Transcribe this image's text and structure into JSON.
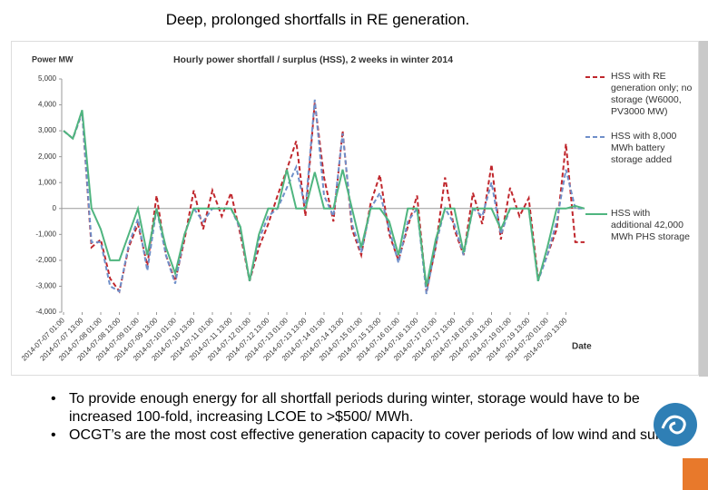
{
  "slide_title": "Deep, prolonged shortfalls in RE generation.",
  "bullets": [
    "To provide enough energy for all shortfall periods during winter, storage would have to be increased 100-fold, increasing LCOE to >$500/ MWh.",
    "OCGT’s are the most cost effective generation capacity to cover periods of low wind and sun."
  ],
  "chart_data": {
    "type": "line",
    "title": "Hourly power shortfall / surplus (HSS), 2 weeks in winter 2014",
    "y_label": "Power MW",
    "x_label": "Date",
    "legend": "right",
    "grid": false,
    "ylim": [
      -4000,
      5000
    ],
    "yticks": [
      {
        "value": 5000,
        "label": "5,000"
      },
      {
        "value": 4000,
        "label": "4,000"
      },
      {
        "value": 3000,
        "label": "3,000"
      },
      {
        "value": 2000,
        "label": "2,000"
      },
      {
        "value": 1000,
        "label": "1,000"
      },
      0,
      {
        "value": -1000,
        "label": "-1,000"
      },
      {
        "value": -2000,
        "label": "-2,000"
      },
      {
        "value": -3000,
        "label": "-3,000"
      },
      {
        "value": -4000,
        "label": "-4,000"
      }
    ],
    "xlim": [
      "2014-07-07 01:00",
      "2014-07-21 01:00"
    ],
    "xticks": [
      "2014-07-07 01:00",
      "2014-07-07 13:00",
      "2014-07-08 01:00",
      "2014-07-08 13:00",
      "2014-07-09 01:00",
      "2014-07-09 13:00",
      "2014-07-10 01:00",
      "2014-07-10 13:00",
      "2014-07-11 01:00",
      "2014-07-11 13:00",
      "2014-07-12 01:00",
      "2014-07-12 13:00",
      "2014-07-13 01:00",
      "2014-07-13 13:00",
      "2014-07-14 01:00",
      "2014-07-14 13:00",
      "2014-07-15 01:00",
      "2014-07-15 13:00",
      "2014-07-16 01:00",
      "2014-07-16 13:00",
      "2014-07-17 01:00",
      "2014-07-17 13:00",
      "2014-07-18 01:00",
      "2014-07-18 13:00",
      "2014-07-19 01:00",
      "2014-07-19 13:00",
      "2014-07-20 01:00",
      "2014-07-20 13:00"
    ],
    "x": [
      "2014-07-07 01:00",
      "2014-07-07 07:00",
      "2014-07-07 13:00",
      "2014-07-07 19:00",
      "2014-07-08 01:00",
      "2014-07-08 07:00",
      "2014-07-08 13:00",
      "2014-07-08 19:00",
      "2014-07-09 01:00",
      "2014-07-09 07:00",
      "2014-07-09 13:00",
      "2014-07-09 19:00",
      "2014-07-10 01:00",
      "2014-07-10 07:00",
      "2014-07-10 13:00",
      "2014-07-10 19:00",
      "2014-07-11 01:00",
      "2014-07-11 07:00",
      "2014-07-11 13:00",
      "2014-07-11 19:00",
      "2014-07-12 01:00",
      "2014-07-12 07:00",
      "2014-07-12 13:00",
      "2014-07-12 19:00",
      "2014-07-13 01:00",
      "2014-07-13 07:00",
      "2014-07-13 13:00",
      "2014-07-13 19:00",
      "2014-07-14 01:00",
      "2014-07-14 07:00",
      "2014-07-14 13:00",
      "2014-07-14 19:00",
      "2014-07-15 01:00",
      "2014-07-15 07:00",
      "2014-07-15 13:00",
      "2014-07-15 19:00",
      "2014-07-16 01:00",
      "2014-07-16 07:00",
      "2014-07-16 13:00",
      "2014-07-16 19:00",
      "2014-07-17 01:00",
      "2014-07-17 07:00",
      "2014-07-17 13:00",
      "2014-07-17 19:00",
      "2014-07-18 01:00",
      "2014-07-18 07:00",
      "2014-07-18 13:00",
      "2014-07-18 19:00",
      "2014-07-19 01:00",
      "2014-07-19 07:00",
      "2014-07-19 13:00",
      "2014-07-19 19:00",
      "2014-07-20 01:00",
      "2014-07-20 07:00",
      "2014-07-20 13:00",
      "2014-07-20 19:00",
      "2014-07-21 01:00"
    ],
    "series": [
      {
        "name": "HSS with RE generation only; no storage (W6000, PV3000 MW)",
        "color": "#c0272d",
        "dash": true,
        "values": [
          3000,
          2700,
          3700,
          -1500,
          -1200,
          -2700,
          -3200,
          -1500,
          -600,
          -2200,
          500,
          -1800,
          -2800,
          -1200,
          700,
          -800,
          700,
          -300,
          600,
          -1000,
          -2800,
          -1500,
          -600,
          500,
          1500,
          2600,
          -300,
          4100,
          1200,
          -500,
          3000,
          -800,
          -1800,
          200,
          1300,
          -1000,
          -2000,
          -700,
          500,
          -3200,
          -1500,
          1200,
          -800,
          -1800,
          600,
          -600,
          1700,
          -1200,
          800,
          -300,
          400,
          -2700,
          -1800,
          -800,
          2500,
          -1300,
          -1300
        ]
      },
      {
        "name": "HSS with 8,000 MWh battery storage added",
        "color": "#6f8fc9",
        "dash": true,
        "values": [
          3000,
          2700,
          3700,
          -1300,
          -1300,
          -3000,
          -3200,
          -1400,
          -400,
          -2400,
          0,
          -1800,
          -2900,
          -1000,
          0,
          -500,
          0,
          0,
          0,
          -800,
          -2800,
          -1200,
          -300,
          0,
          800,
          1600,
          0,
          4200,
          500,
          -300,
          2900,
          -600,
          -1700,
          0,
          600,
          -800,
          -2100,
          -500,
          0,
          -3300,
          -1400,
          0,
          -600,
          -1800,
          0,
          -300,
          1000,
          -1000,
          0,
          0,
          0,
          -2800,
          -1800,
          -500,
          1500,
          0,
          0
        ]
      },
      {
        "name": "HSS with additional 42,000 MWh PHS storage",
        "color": "#4fb57f",
        "dash": false,
        "values": [
          3000,
          2700,
          3800,
          0,
          -800,
          -2000,
          -2000,
          -1000,
          0,
          -1800,
          0,
          -1500,
          -2500,
          -1000,
          0,
          0,
          0,
          0,
          0,
          -700,
          -2800,
          -1000,
          0,
          0,
          1500,
          0,
          0,
          1400,
          0,
          0,
          1500,
          0,
          -1500,
          0,
          0,
          -500,
          -1800,
          0,
          0,
          -3000,
          -1200,
          0,
          0,
          -1700,
          0,
          0,
          0,
          -800,
          0,
          0,
          0,
          -2800,
          -1500,
          0,
          0,
          100,
          0
        ]
      }
    ]
  }
}
